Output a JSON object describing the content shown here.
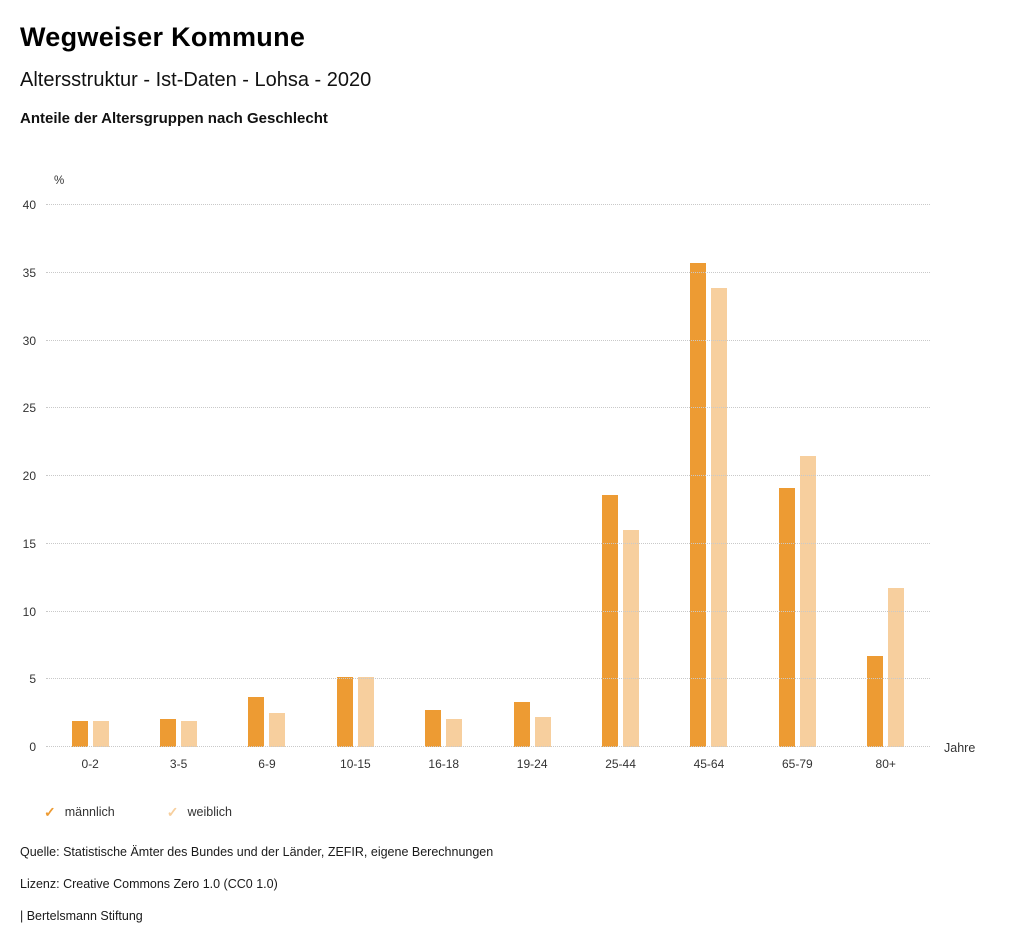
{
  "header": {
    "title": "Wegweiser Kommune",
    "subtitle": "Altersstruktur - Ist-Daten - Lohsa - 2020",
    "chart_heading": "Anteile der Altersgruppen nach Geschlecht"
  },
  "chart_data": {
    "type": "bar",
    "title": "Anteile der Altersgruppen nach Geschlecht",
    "categories": [
      "0-2",
      "3-5",
      "6-9",
      "10-15",
      "16-18",
      "19-24",
      "25-44",
      "45-64",
      "65-79",
      "80+"
    ],
    "series": [
      {
        "name": "männlich",
        "color": "#ED9B33",
        "values": [
          1.9,
          2.1,
          3.7,
          5.2,
          2.7,
          3.3,
          18.6,
          35.7,
          19.1,
          6.7
        ]
      },
      {
        "name": "weiblich",
        "color": "#F7CF9E",
        "values": [
          1.9,
          1.9,
          2.5,
          5.2,
          2.1,
          2.2,
          16.0,
          33.9,
          21.5,
          11.7
        ]
      }
    ],
    "ylabel": "%",
    "xlabel": "Jahre",
    "ylim": [
      0,
      40
    ],
    "ytick_step": 5,
    "grid": true,
    "gridline_style": "dotted",
    "legend_position": "bottom-left",
    "legend_marker": "✓"
  },
  "footer": {
    "source": "Quelle: Statistische Ämter des Bundes und der Länder, ZEFIR, eigene Berechnungen",
    "license": "Lizenz: Creative Commons Zero 1.0 (CC0 1.0)",
    "brand": "| Bertelsmann Stiftung"
  }
}
